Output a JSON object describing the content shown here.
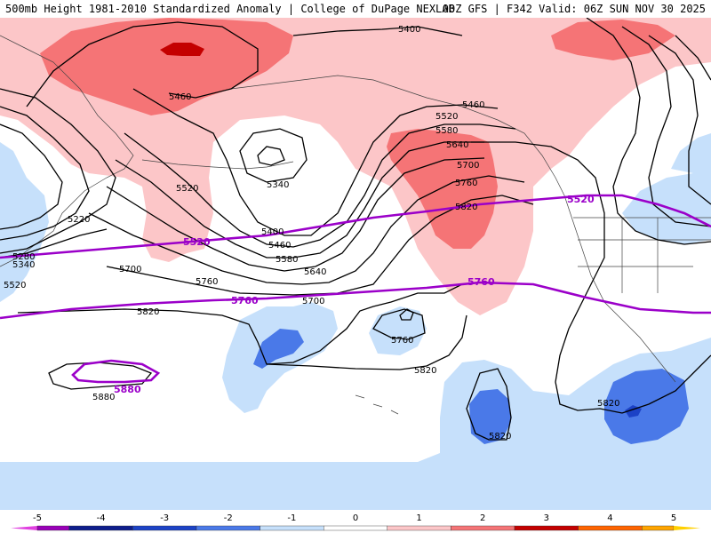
{
  "header": {
    "title_left": "500mb Height 1981-2010 Standardized Anomaly | College of DuPage NEXLAB",
    "title_right": "00Z GFS | F342 Valid: 06Z SUN NOV 30 2025"
  },
  "colors": {
    "anom_pos1": "#fcc6c8",
    "anom_pos2": "#f57476",
    "anom_pos3": "#c40000",
    "anom_neg1": "#c6e0fb",
    "anom_neg2": "#4a79e8",
    "anom_neg3": "#1c42c6",
    "contour": "#000000",
    "reference_contour": "#9b00c9",
    "coastline": "#333333"
  },
  "contour_labels": [
    "5400",
    "5460",
    "5460",
    "5520",
    "5580",
    "5640",
    "5700",
    "5760",
    "5820",
    "5340",
    "5520",
    "5220",
    "5280",
    "5340",
    "5520",
    "5400",
    "5460",
    "5580",
    "5640",
    "5700",
    "5760",
    "5700",
    "5820",
    "5760",
    "5820",
    "5820",
    "5880",
    "5820"
  ],
  "reference_labels": [
    "5520",
    "5520",
    "5760",
    "5760",
    "5880"
  ],
  "colorbar": {
    "ticks": [
      "-5",
      "-4",
      "-3",
      "-2",
      "-1",
      "0",
      "1",
      "2",
      "3",
      "4",
      "5"
    ],
    "colors": [
      "#9900b8",
      "#0e1e8c",
      "#1c42c6",
      "#4a79e8",
      "#c6e0fb",
      "#ffffff",
      "#fcc6c8",
      "#f57476",
      "#c40000",
      "#ff6400",
      "#ffa500"
    ],
    "left_arrow": "#e040e0",
    "right_arrow": "#ffd000"
  }
}
